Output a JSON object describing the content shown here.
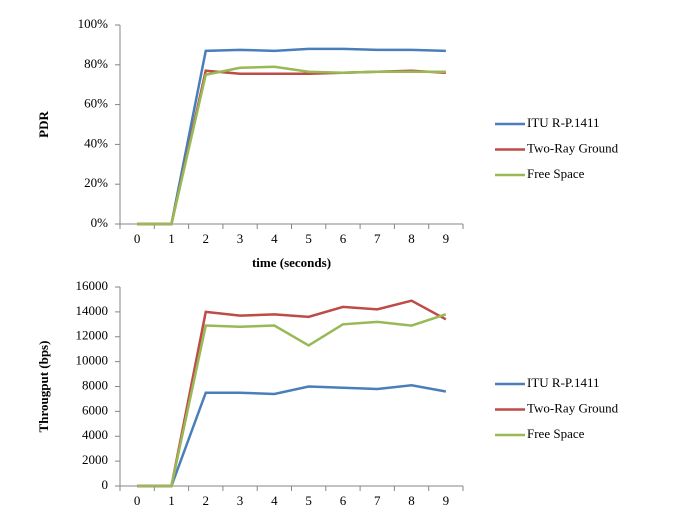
{
  "chart_data": [
    {
      "type": "line",
      "y_label": "PDR",
      "x_label": "time (seconds)",
      "categories": [
        "0",
        "1",
        "2",
        "3",
        "4",
        "5",
        "6",
        "7",
        "8",
        "9"
      ],
      "series": [
        {
          "name": "ITU R-P.1411",
          "color": "#4a7ebb",
          "values": [
            0,
            0,
            87,
            87.5,
            87,
            88,
            88,
            87.5,
            87.5,
            87
          ]
        },
        {
          "name": "Two-Ray Ground",
          "color": "#be4b48",
          "values": [
            0,
            0,
            77,
            75.5,
            75.5,
            75.5,
            76,
            76.5,
            77,
            76
          ]
        },
        {
          "name": "Free Space",
          "color": "#98b954",
          "values": [
            0,
            0,
            75,
            78.5,
            79,
            76.5,
            76,
            76.5,
            76.5,
            76.5
          ]
        }
      ],
      "ylim": [
        0,
        100
      ],
      "yticks": [
        {
          "value": 0,
          "label": "0%"
        },
        {
          "value": 20,
          "label": "20%"
        },
        {
          "value": 40,
          "label": "40%"
        },
        {
          "value": 60,
          "label": "60%"
        },
        {
          "value": 80,
          "label": "80%"
        },
        {
          "value": 100,
          "label": "100%"
        }
      ],
      "legend": "right"
    },
    {
      "type": "line",
      "y_label": "Througput (bps)",
      "categories": [
        "0",
        "1",
        "2",
        "3",
        "4",
        "5",
        "6",
        "7",
        "8",
        "9"
      ],
      "series": [
        {
          "name": "ITU R-P.1411",
          "color": "#4a7ebb",
          "values": [
            0,
            0,
            7500,
            7500,
            7400,
            8000,
            7900,
            7800,
            8100,
            7600
          ]
        },
        {
          "name": "Two-Ray Ground",
          "color": "#be4b48",
          "values": [
            0,
            0,
            14000,
            13700,
            13800,
            13600,
            14400,
            14200,
            14900,
            13400
          ]
        },
        {
          "name": "Free Space",
          "color": "#98b954",
          "values": [
            0,
            0,
            12900,
            12800,
            12900,
            11300,
            13000,
            13200,
            12900,
            13800
          ]
        }
      ],
      "ylim": [
        0,
        16000
      ],
      "yticks": [
        0,
        2000,
        4000,
        6000,
        8000,
        10000,
        12000,
        14000,
        16000
      ],
      "legend": "right"
    }
  ]
}
